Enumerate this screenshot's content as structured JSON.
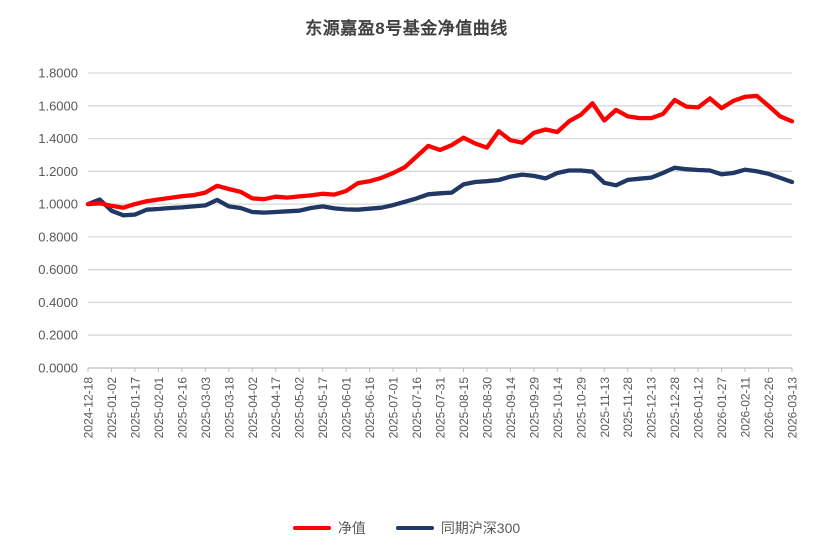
{
  "title": "东源嘉盈8号基金净值曲线",
  "chart_data": {
    "type": "line",
    "title": "东源嘉盈8号基金净值曲线",
    "grid": "horizontal",
    "legend_position": "bottom",
    "ylim": [
      0,
      1.8
    ],
    "y_tick_step": 0.2,
    "y_tick_labels": [
      "0.0000",
      "0.2000",
      "0.4000",
      "0.6000",
      "0.8000",
      "1.0000",
      "1.2000",
      "1.4000",
      "1.6000",
      "1.8000"
    ],
    "x_tick_labels": [
      "2024-12-18",
      "2025-01-02",
      "2025-01-17",
      "2025-02-01",
      "2025-02-16",
      "2025-03-03",
      "2025-03-18",
      "2025-04-02",
      "2025-04-17",
      "2025-05-02",
      "2025-05-17",
      "2025-06-01",
      "2025-06-16",
      "2025-07-01",
      "2025-07-16",
      "2025-07-31",
      "2025-08-15",
      "2025-08-30",
      "2025-09-14",
      "2025-09-29",
      "2025-10-14",
      "2025-10-29",
      "2025-11-13",
      "2025-11-28",
      "2025-12-13",
      "2025-12-28",
      "2026-01-12",
      "2026-01-27",
      "2026-02-11",
      "2026-02-26",
      "2026-03-13"
    ],
    "x_dates": [
      "2024-12-18",
      "2024-12-25",
      "2025-01-02",
      "2025-01-09",
      "2025-01-17",
      "2025-01-24",
      "2025-02-01",
      "2025-02-08",
      "2025-02-16",
      "2025-02-23",
      "2025-03-03",
      "2025-03-10",
      "2025-03-18",
      "2025-03-25",
      "2025-04-02",
      "2025-04-09",
      "2025-04-17",
      "2025-04-24",
      "2025-05-02",
      "2025-05-09",
      "2025-05-17",
      "2025-05-24",
      "2025-06-01",
      "2025-06-08",
      "2025-06-16",
      "2025-06-23",
      "2025-07-01",
      "2025-07-08",
      "2025-07-16",
      "2025-07-23",
      "2025-07-31",
      "2025-08-07",
      "2025-08-15",
      "2025-08-22",
      "2025-08-30",
      "2025-09-06",
      "2025-09-14",
      "2025-09-21",
      "2025-09-29",
      "2025-10-06",
      "2025-10-14",
      "2025-10-21",
      "2025-10-29",
      "2025-11-05",
      "2025-11-13",
      "2025-11-20",
      "2025-11-28",
      "2025-12-05",
      "2025-12-13",
      "2025-12-20",
      "2025-12-28",
      "2026-01-04",
      "2026-01-12",
      "2026-01-19",
      "2026-01-27",
      "2026-02-03",
      "2026-02-11",
      "2026-02-18",
      "2026-02-26",
      "2026-03-05",
      "2026-03-13"
    ],
    "colors": {
      "grid": "#D9D9D9",
      "axis": "#BFBFBF",
      "axis_text": "#595959",
      "title_text": "#404040"
    },
    "series": [
      {
        "id": "nav",
        "name": "净值",
        "color": "#FF0000",
        "values": [
          1.0,
          1.005,
          0.99,
          0.978,
          1.0,
          1.018,
          1.028,
          1.038,
          1.048,
          1.055,
          1.07,
          1.112,
          1.092,
          1.075,
          1.035,
          1.03,
          1.045,
          1.04,
          1.047,
          1.053,
          1.063,
          1.058,
          1.08,
          1.128,
          1.14,
          1.16,
          1.19,
          1.225,
          1.29,
          1.355,
          1.33,
          1.36,
          1.405,
          1.37,
          1.345,
          1.445,
          1.39,
          1.375,
          1.435,
          1.455,
          1.44,
          1.505,
          1.545,
          1.615,
          1.51,
          1.575,
          1.535,
          1.525,
          1.525,
          1.55,
          1.635,
          1.595,
          1.59,
          1.645,
          1.585,
          1.63,
          1.655,
          1.66,
          1.6,
          1.535,
          1.505
        ]
      },
      {
        "id": "benchmark",
        "name": "同期沪深300",
        "color": "#1F3864",
        "values": [
          1.0,
          1.028,
          0.96,
          0.932,
          0.936,
          0.966,
          0.97,
          0.976,
          0.98,
          0.986,
          0.992,
          1.026,
          0.986,
          0.976,
          0.952,
          0.948,
          0.952,
          0.956,
          0.96,
          0.976,
          0.986,
          0.974,
          0.968,
          0.966,
          0.972,
          0.978,
          0.994,
          1.014,
          1.035,
          1.06,
          1.066,
          1.07,
          1.12,
          1.135,
          1.14,
          1.147,
          1.168,
          1.18,
          1.172,
          1.157,
          1.19,
          1.205,
          1.205,
          1.198,
          1.13,
          1.115,
          1.148,
          1.155,
          1.162,
          1.19,
          1.222,
          1.213,
          1.208,
          1.205,
          1.182,
          1.19,
          1.21,
          1.2,
          1.185,
          1.16,
          1.135
        ]
      }
    ]
  }
}
